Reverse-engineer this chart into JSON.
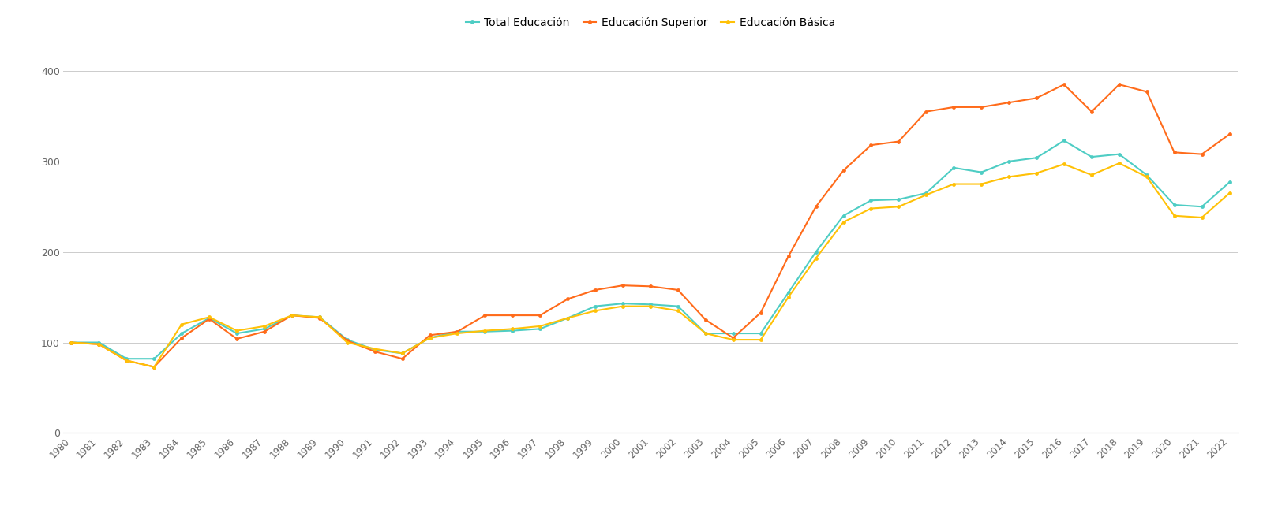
{
  "years": [
    1980,
    1981,
    1982,
    1983,
    1984,
    1985,
    1986,
    1987,
    1988,
    1989,
    1990,
    1991,
    1992,
    1993,
    1994,
    1995,
    1996,
    1997,
    1998,
    1999,
    2000,
    2001,
    2002,
    2003,
    2004,
    2005,
    2006,
    2007,
    2008,
    2009,
    2010,
    2011,
    2012,
    2013,
    2014,
    2015,
    2016,
    2017,
    2018,
    2019,
    2020,
    2021,
    2022
  ],
  "total_educacion": [
    100,
    100,
    82,
    82,
    110,
    127,
    110,
    115,
    130,
    128,
    103,
    92,
    88,
    105,
    112,
    112,
    113,
    115,
    127,
    140,
    143,
    142,
    140,
    110,
    110,
    110,
    155,
    200,
    240,
    257,
    258,
    265,
    293,
    288,
    300,
    304,
    323,
    305,
    308,
    285,
    252,
    250,
    277
  ],
  "educacion_superior": [
    100,
    98,
    80,
    73,
    105,
    126,
    104,
    112,
    130,
    127,
    102,
    90,
    82,
    108,
    112,
    130,
    130,
    130,
    148,
    158,
    163,
    162,
    158,
    125,
    105,
    133,
    195,
    250,
    290,
    318,
    322,
    355,
    360,
    360,
    365,
    370,
    385,
    355,
    385,
    377,
    310,
    308,
    330
  ],
  "educacion_basica": [
    100,
    98,
    80,
    73,
    120,
    128,
    113,
    118,
    130,
    128,
    100,
    93,
    88,
    105,
    110,
    113,
    115,
    118,
    127,
    135,
    140,
    140,
    135,
    110,
    103,
    103,
    150,
    193,
    233,
    248,
    250,
    263,
    275,
    275,
    283,
    287,
    297,
    285,
    298,
    283,
    240,
    238,
    265
  ],
  "color_total": "#4ECDC4",
  "color_superior": "#FF6B1A",
  "color_basica": "#FFC107",
  "legend_labels": [
    "Total Educación",
    "Educación Superior",
    "Educación Básica"
  ],
  "ylim": [
    0,
    420
  ],
  "yticks": [
    0,
    100,
    200,
    300,
    400
  ],
  "background_color": "#ffffff",
  "grid_color": "#cccccc",
  "line_width": 1.5,
  "marker_size": 3.5
}
